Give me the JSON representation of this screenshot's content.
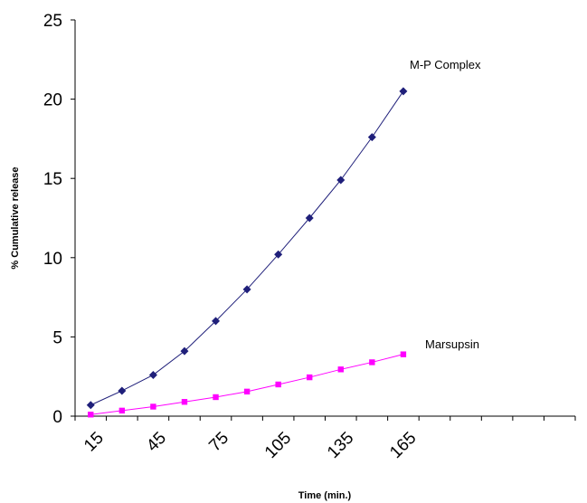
{
  "chart_data": {
    "type": "line",
    "title": "",
    "xlabel": "Time (min.)",
    "ylabel": "% Cumulative release",
    "x": [
      15,
      30,
      45,
      60,
      75,
      90,
      105,
      120,
      135,
      150,
      165
    ],
    "x_tick_labels": [
      "15",
      "45",
      "75",
      "105",
      "135",
      "165"
    ],
    "y_tick_labels": [
      "0",
      "5",
      "10",
      "15",
      "20",
      "25"
    ],
    "ylim": [
      0,
      25
    ],
    "grid": false,
    "series": [
      {
        "name": "M-P Complex",
        "color": "#1f1f7a",
        "marker": "diamond",
        "values": [
          0.7,
          1.6,
          2.6,
          4.1,
          6.0,
          8.0,
          10.2,
          12.5,
          14.9,
          17.6,
          20.5
        ]
      },
      {
        "name": "Marsupsin",
        "color": "#ff00ff",
        "marker": "square",
        "values": [
          0.1,
          0.35,
          0.6,
          0.9,
          1.2,
          1.55,
          2.0,
          2.45,
          2.95,
          3.4,
          3.9
        ]
      }
    ]
  }
}
